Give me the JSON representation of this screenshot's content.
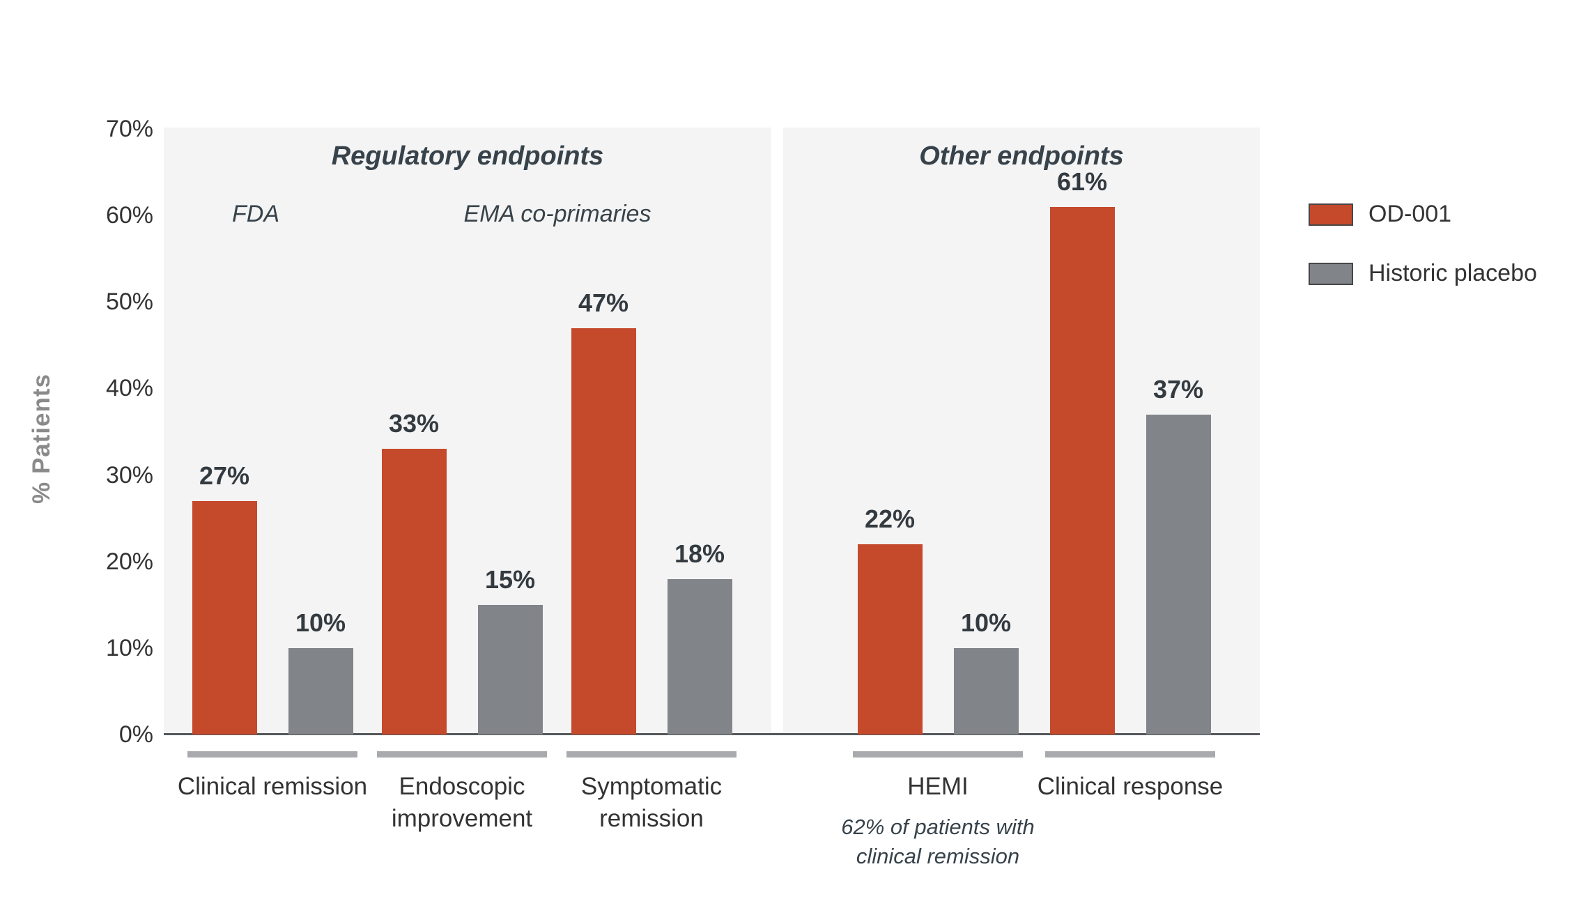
{
  "chart_data": {
    "type": "bar",
    "title": "",
    "ylabel": "% Patients",
    "ylim": [
      0,
      70
    ],
    "yticks": [
      "70%",
      "60%",
      "50%",
      "40%",
      "30%",
      "20%",
      "10%",
      "0%"
    ],
    "grid": false,
    "legend_position": "top-right",
    "series": [
      {
        "name": "OD-001",
        "color": "#c5492b"
      },
      {
        "name": "Historic placebo",
        "color": "#818488"
      }
    ],
    "panels": [
      {
        "title": "Regulatory endpoints",
        "subtitles": [
          {
            "label": "FDA"
          },
          {
            "label": "EMA co-primaries"
          }
        ],
        "groups": [
          {
            "label": "Clinical remission",
            "values": [
              27,
              10
            ]
          },
          {
            "label": "Endoscopic improvement",
            "values": [
              33,
              15
            ]
          },
          {
            "label": "Symptomatic remission",
            "values": [
              47,
              18
            ]
          }
        ]
      },
      {
        "title": "Other endpoints",
        "subtitles": [],
        "groups": [
          {
            "label": "HEMI",
            "note": "62% of patients with clinical remission",
            "values": [
              22,
              10
            ]
          },
          {
            "label": "Clinical response",
            "values": [
              61,
              37
            ]
          }
        ]
      }
    ]
  },
  "colors": {
    "panel_background": "#f4f4f4",
    "axis_line": "#55585a",
    "category_underline": "#a8aaad",
    "title_text": "#37424a",
    "tick_text": "#333333"
  }
}
